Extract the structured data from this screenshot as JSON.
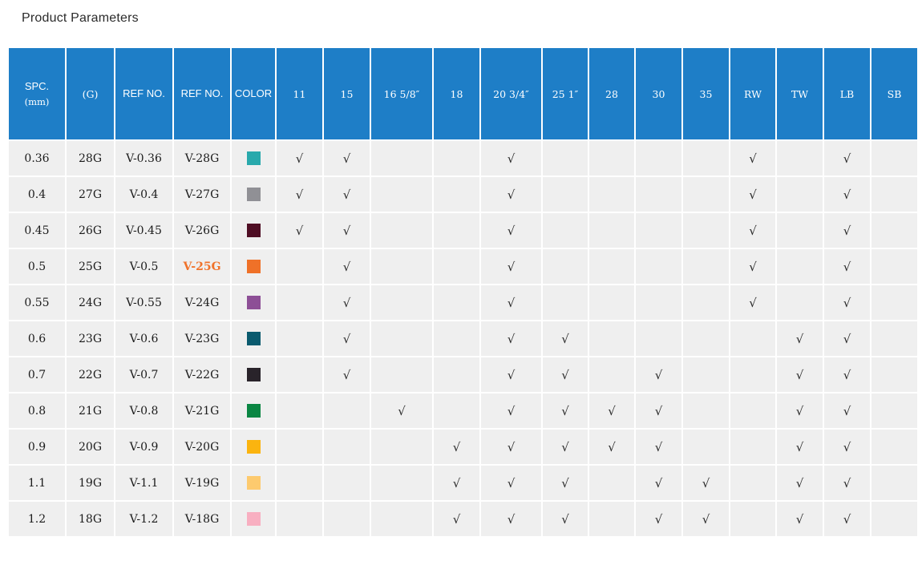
{
  "page": {
    "title": "Product Parameters"
  },
  "colors": {
    "header_bg": "#1e7ec7",
    "header_text": "#ffffff",
    "cell_bg": "#efefef",
    "body_text": "#1b1b1b",
    "check_color": "#2b2b2b",
    "highlight_text": "#f0722a"
  },
  "table": {
    "check_glyph": "√",
    "columns": [
      {
        "key": "spc",
        "label": "SPC.",
        "sublabel": "(mm)",
        "style": "sans"
      },
      {
        "key": "gauge",
        "label": "(G)",
        "style": "serif"
      },
      {
        "key": "ref_no_1",
        "label": "REF NO.",
        "style": "sans"
      },
      {
        "key": "ref_no_2",
        "label": "REF NO.",
        "style": "sans"
      },
      {
        "key": "color",
        "label": "COLOR",
        "style": "sans"
      },
      {
        "key": "s11",
        "label": "11",
        "style": "serif"
      },
      {
        "key": "s15",
        "label": "15",
        "style": "serif"
      },
      {
        "key": "s16",
        "label": "16 5/8″",
        "style": "serif"
      },
      {
        "key": "s18",
        "label": "18",
        "style": "serif"
      },
      {
        "key": "s20",
        "label": "20 3/4″",
        "style": "serif"
      },
      {
        "key": "s25",
        "label": "25 1″",
        "style": "serif"
      },
      {
        "key": "s28",
        "label": "28",
        "style": "serif"
      },
      {
        "key": "s30",
        "label": "30",
        "style": "serif"
      },
      {
        "key": "s35",
        "label": "35",
        "style": "serif"
      },
      {
        "key": "rw",
        "label": "RW",
        "style": "serif"
      },
      {
        "key": "tw",
        "label": "TW",
        "style": "serif"
      },
      {
        "key": "lb",
        "label": "LB",
        "style": "serif"
      },
      {
        "key": "sb",
        "label": "SB",
        "style": "serif"
      }
    ],
    "rows": [
      {
        "spc": "0.36",
        "gauge": "28G",
        "ref1": "V-0.36",
        "ref2": "V-28G",
        "ref2_highlight": false,
        "swatch": "#29a9ac",
        "checks": [
          1,
          1,
          0,
          0,
          1,
          0,
          0,
          0,
          0,
          1,
          0,
          1,
          0
        ]
      },
      {
        "spc": "0.4",
        "gauge": "27G",
        "ref1": "V-0.4",
        "ref2": "V-27G",
        "ref2_highlight": false,
        "swatch": "#909095",
        "checks": [
          1,
          1,
          0,
          0,
          1,
          0,
          0,
          0,
          0,
          1,
          0,
          1,
          0
        ]
      },
      {
        "spc": "0.45",
        "gauge": "26G",
        "ref1": "V-0.45",
        "ref2": "V-26G",
        "ref2_highlight": false,
        "swatch": "#4f0e24",
        "checks": [
          1,
          1,
          0,
          0,
          1,
          0,
          0,
          0,
          0,
          1,
          0,
          1,
          0
        ]
      },
      {
        "spc": "0.5",
        "gauge": "25G",
        "ref1": "V-0.5",
        "ref2": "V-25G",
        "ref2_highlight": true,
        "swatch": "#ef7128",
        "checks": [
          0,
          1,
          0,
          0,
          1,
          0,
          0,
          0,
          0,
          1,
          0,
          1,
          0
        ]
      },
      {
        "spc": "0.55",
        "gauge": "24G",
        "ref1": "V-0.55",
        "ref2": "V-24G",
        "ref2_highlight": false,
        "swatch": "#8d4f96",
        "checks": [
          0,
          1,
          0,
          0,
          1,
          0,
          0,
          0,
          0,
          1,
          0,
          1,
          0
        ]
      },
      {
        "spc": "0.6",
        "gauge": "23G",
        "ref1": "V-0.6",
        "ref2": "V-23G",
        "ref2_highlight": false,
        "swatch": "#0a5a6e",
        "checks": [
          0,
          1,
          0,
          0,
          1,
          1,
          0,
          0,
          0,
          0,
          1,
          1,
          0
        ]
      },
      {
        "spc": "0.7",
        "gauge": "22G",
        "ref1": "V-0.7",
        "ref2": "V-22G",
        "ref2_highlight": false,
        "swatch": "#29232a",
        "checks": [
          0,
          1,
          0,
          0,
          1,
          1,
          0,
          1,
          0,
          0,
          1,
          1,
          0
        ]
      },
      {
        "spc": "0.8",
        "gauge": "21G",
        "ref1": "V-0.8",
        "ref2": "V-21G",
        "ref2_highlight": false,
        "swatch": "#0a8643",
        "checks": [
          0,
          0,
          1,
          0,
          1,
          1,
          1,
          1,
          0,
          0,
          1,
          1,
          0
        ]
      },
      {
        "spc": "0.9",
        "gauge": "20G",
        "ref1": "V-0.9",
        "ref2": "V-20G",
        "ref2_highlight": false,
        "swatch": "#fbb40f",
        "checks": [
          0,
          0,
          0,
          1,
          1,
          1,
          1,
          1,
          0,
          0,
          1,
          1,
          0
        ]
      },
      {
        "spc": "1.1",
        "gauge": "19G",
        "ref1": "V-1.1",
        "ref2": "V-19G",
        "ref2_highlight": false,
        "swatch": "#fdca6e",
        "checks": [
          0,
          0,
          0,
          1,
          1,
          1,
          0,
          1,
          1,
          0,
          1,
          1,
          0
        ]
      },
      {
        "spc": "1.2",
        "gauge": "18G",
        "ref1": "V-1.2",
        "ref2": "V-18G",
        "ref2_highlight": false,
        "swatch": "#f8afc1",
        "checks": [
          0,
          0,
          0,
          1,
          1,
          1,
          0,
          1,
          1,
          0,
          1,
          1,
          0
        ]
      }
    ]
  }
}
